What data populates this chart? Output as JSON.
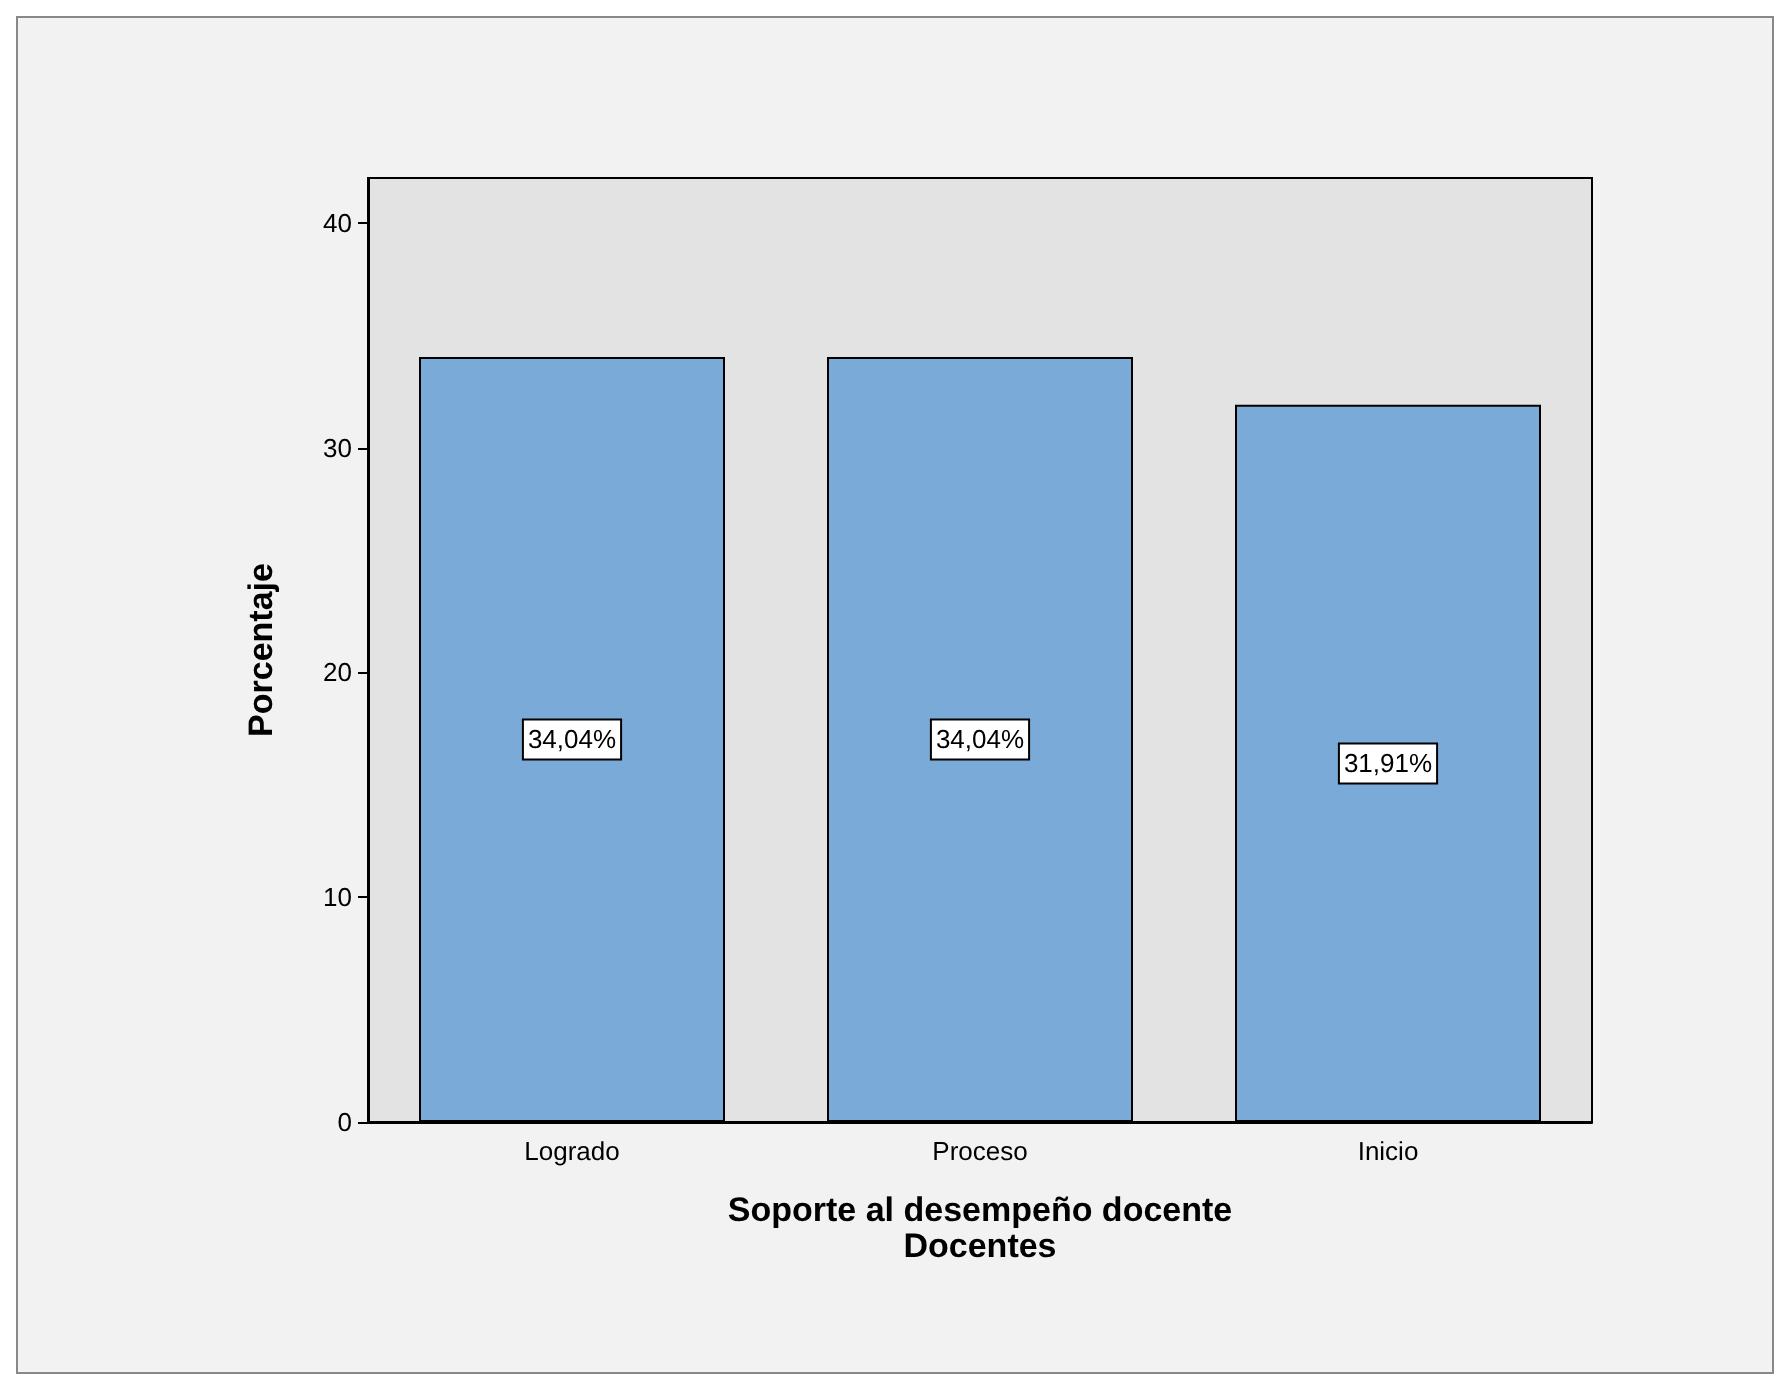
{
  "chart_data": {
    "type": "bar",
    "xlabel": "Soporte al desempeño docente\nDocentes",
    "ylabel": "Porcentaje",
    "categories": [
      "Logrado",
      "Proceso",
      "Inicio"
    ],
    "values": [
      34.04,
      34.04,
      31.91
    ],
    "value_labels": [
      "34,04%",
      "34,04%",
      "31,91%"
    ],
    "color": "#7aaad8",
    "ylim": [
      0,
      42
    ],
    "yticks": [
      0,
      10,
      20,
      30,
      40
    ],
    "grid": false
  }
}
